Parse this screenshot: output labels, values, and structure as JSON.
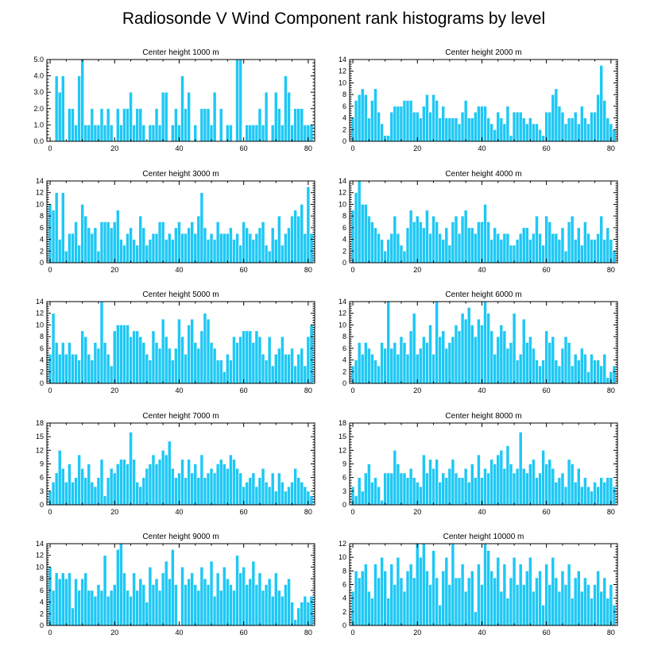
{
  "title": "Radiosonde V Wind Component rank histograms by level",
  "colors": {
    "bar": "#1ec8f5",
    "axis": "#000000"
  },
  "chart_data": [
    {
      "type": "bar",
      "title": "Center height 1000 m",
      "ylim": [
        0,
        5
      ],
      "yticks": [
        "0.0",
        "1.0",
        "2.0",
        "3.0",
        "4.0",
        "5.0"
      ],
      "ytick_values": [
        0,
        1,
        2,
        3,
        4,
        5
      ],
      "xlim": [
        -1,
        82
      ],
      "xticks": [
        0,
        20,
        40,
        60,
        80
      ],
      "xtick_labels": [
        "0",
        "20",
        "40",
        "60",
        "80"
      ],
      "categories_start": 0,
      "values": [
        0,
        0,
        4,
        3,
        4,
        0,
        2,
        2,
        1,
        4,
        5,
        1,
        1,
        2,
        1,
        1,
        2,
        1,
        2,
        1,
        0,
        2,
        1,
        2,
        2,
        3,
        1,
        2,
        2,
        1,
        0,
        1,
        1,
        2,
        1,
        3,
        3,
        0,
        1,
        2,
        1,
        4,
        2,
        3,
        0,
        1,
        0,
        2,
        2,
        2,
        1,
        3,
        0,
        2,
        0,
        1,
        1,
        0,
        5,
        5,
        0,
        1,
        1,
        1,
        1,
        2,
        1,
        3,
        0,
        1,
        3,
        2,
        1,
        4,
        3,
        1,
        2,
        2,
        2,
        1,
        1,
        1
      ]
    },
    {
      "type": "bar",
      "title": "Center height 2000 m",
      "ylim": [
        0,
        14
      ],
      "yticks": [
        "0",
        "2",
        "4",
        "6",
        "8",
        "10",
        "12",
        "14"
      ],
      "ytick_values": [
        0,
        2,
        4,
        6,
        8,
        10,
        12,
        14
      ],
      "xlim": [
        -1,
        82
      ],
      "xticks": [
        0,
        20,
        40,
        60,
        80
      ],
      "xtick_labels": [
        "0",
        "20",
        "40",
        "60",
        "80"
      ],
      "categories_start": 0,
      "values": [
        4,
        7,
        8,
        9,
        8,
        4,
        7,
        9,
        5,
        3,
        1,
        1,
        5,
        6,
        6,
        6,
        7,
        7,
        7,
        5,
        5,
        4,
        6,
        8,
        5,
        8,
        7,
        4,
        6,
        4,
        4,
        4,
        4,
        3,
        5,
        7,
        4,
        4,
        5,
        6,
        6,
        6,
        4,
        3,
        2,
        5,
        4,
        3,
        6,
        1,
        5,
        5,
        5,
        4,
        3,
        4,
        3,
        3,
        2,
        1,
        5,
        5,
        8,
        9,
        6,
        5,
        3,
        4,
        4,
        5,
        3,
        6,
        4,
        3,
        5,
        5,
        8,
        13,
        7,
        4,
        3,
        2
      ]
    },
    {
      "type": "bar",
      "title": "Center height 3000 m",
      "ylim": [
        0,
        14
      ],
      "yticks": [
        "0",
        "2",
        "4",
        "6",
        "8",
        "10",
        "12",
        "14"
      ],
      "ytick_values": [
        0,
        2,
        4,
        6,
        8,
        10,
        12,
        14
      ],
      "xlim": [
        -1,
        82
      ],
      "xticks": [
        0,
        20,
        40,
        60,
        80
      ],
      "xtick_labels": [
        "0",
        "20",
        "40",
        "60",
        "80"
      ],
      "categories_start": 0,
      "values": [
        10,
        9,
        12,
        4,
        12,
        2,
        5,
        5,
        7,
        3,
        10,
        8,
        6,
        5,
        6,
        2,
        7,
        7,
        7,
        6,
        7,
        9,
        4,
        3,
        5,
        6,
        4,
        3,
        8,
        6,
        3,
        4,
        5,
        5,
        7,
        7,
        4,
        5,
        4,
        6,
        7,
        5,
        5,
        6,
        7,
        5,
        8,
        12,
        6,
        4,
        5,
        4,
        7,
        5,
        5,
        5,
        6,
        4,
        5,
        3,
        7,
        6,
        5,
        4,
        5,
        6,
        7,
        3,
        2,
        6,
        4,
        8,
        3,
        5,
        6,
        8,
        9,
        8,
        10,
        5,
        13,
        5
      ]
    },
    {
      "type": "bar",
      "title": "Center height 4000 m",
      "ylim": [
        0,
        14
      ],
      "yticks": [
        "0",
        "2",
        "4",
        "6",
        "8",
        "10",
        "12",
        "14"
      ],
      "ytick_values": [
        0,
        2,
        4,
        6,
        8,
        10,
        12,
        14
      ],
      "xlim": [
        -1,
        82
      ],
      "xticks": [
        0,
        20,
        40,
        60,
        80
      ],
      "xtick_labels": [
        "0",
        "20",
        "40",
        "60",
        "80"
      ],
      "categories_start": 0,
      "values": [
        9,
        12,
        14,
        10,
        10,
        8,
        7,
        6,
        5,
        4,
        2,
        4,
        5,
        8,
        5,
        3,
        2,
        6,
        9,
        7,
        8,
        7,
        6,
        9,
        5,
        8,
        7,
        5,
        4,
        6,
        3,
        7,
        8,
        5,
        8,
        9,
        6,
        6,
        5,
        7,
        7,
        10,
        7,
        4,
        6,
        5,
        4,
        5,
        5,
        3,
        3,
        4,
        5,
        6,
        6,
        4,
        5,
        8,
        5,
        3,
        8,
        7,
        5,
        5,
        4,
        6,
        2,
        7,
        8,
        4,
        6,
        3,
        7,
        5,
        4,
        4,
        5,
        8,
        4,
        6,
        4,
        2
      ]
    },
    {
      "type": "bar",
      "title": "Center height 5000 m",
      "ylim": [
        0,
        14
      ],
      "yticks": [
        "0",
        "2",
        "4",
        "6",
        "8",
        "10",
        "12",
        "14"
      ],
      "ytick_values": [
        0,
        2,
        4,
        6,
        8,
        10,
        12,
        14
      ],
      "xlim": [
        -1,
        82
      ],
      "xticks": [
        0,
        20,
        40,
        60,
        80
      ],
      "xtick_labels": [
        "0",
        "20",
        "40",
        "60",
        "80"
      ],
      "categories_start": 0,
      "values": [
        5,
        12,
        7,
        5,
        7,
        5,
        7,
        5,
        5,
        4,
        9,
        8,
        5,
        4,
        7,
        6,
        14,
        7,
        5,
        3,
        9,
        10,
        10,
        10,
        10,
        8,
        9,
        9,
        8,
        7,
        5,
        4,
        9,
        7,
        6,
        11,
        8,
        6,
        4,
        6,
        11,
        8,
        5,
        10,
        11,
        7,
        6,
        9,
        12,
        11,
        7,
        6,
        4,
        4,
        2,
        5,
        4,
        8,
        7,
        8,
        9,
        9,
        9,
        7,
        9,
        8,
        5,
        4,
        8,
        3,
        5,
        6,
        8,
        5,
        5,
        6,
        3,
        5,
        6,
        3,
        8,
        10
      ]
    },
    {
      "type": "bar",
      "title": "Center height 6000 m",
      "ylim": [
        0,
        14
      ],
      "yticks": [
        "0",
        "2",
        "4",
        "6",
        "8",
        "10",
        "12",
        "14"
      ],
      "ytick_values": [
        0,
        2,
        4,
        6,
        8,
        10,
        12,
        14
      ],
      "xlim": [
        -1,
        82
      ],
      "xticks": [
        0,
        20,
        40,
        60,
        80
      ],
      "xtick_labels": [
        "0",
        "20",
        "40",
        "60",
        "80"
      ],
      "categories_start": 0,
      "values": [
        3,
        4,
        7,
        5,
        7,
        6,
        5,
        4,
        3,
        7,
        6,
        14,
        6,
        7,
        5,
        8,
        7,
        5,
        9,
        12,
        5,
        6,
        8,
        7,
        10,
        5,
        14,
        8,
        9,
        6,
        7,
        8,
        10,
        9,
        12,
        11,
        13,
        10,
        8,
        11,
        10,
        14,
        12,
        9,
        5,
        8,
        10,
        9,
        6,
        7,
        12,
        4,
        5,
        11,
        7,
        8,
        6,
        4,
        3,
        4,
        9,
        7,
        8,
        4,
        3,
        6,
        8,
        7,
        3,
        5,
        4,
        6,
        5,
        2,
        5,
        4,
        4,
        3,
        5,
        1,
        2,
        3
      ]
    },
    {
      "type": "bar",
      "title": "Center height 7000 m",
      "ylim": [
        0,
        18
      ],
      "yticks": [
        "0",
        "3",
        "6",
        "9",
        "12",
        "15",
        "18"
      ],
      "ytick_values": [
        0,
        3,
        6,
        9,
        12,
        15,
        18
      ],
      "xlim": [
        -1,
        82
      ],
      "xticks": [
        0,
        20,
        40,
        60,
        80
      ],
      "xtick_labels": [
        "0",
        "20",
        "40",
        "60",
        "80"
      ],
      "categories_start": 0,
      "values": [
        3,
        5,
        7,
        12,
        8,
        5,
        9,
        5,
        6,
        11,
        8,
        6,
        9,
        5,
        4,
        6,
        10,
        2,
        6,
        8,
        7,
        9,
        10,
        10,
        9,
        16,
        10,
        5,
        4,
        6,
        8,
        9,
        11,
        9,
        10,
        12,
        11,
        14,
        8,
        6,
        7,
        10,
        6,
        10,
        7,
        9,
        6,
        11,
        6,
        7,
        8,
        7,
        9,
        10,
        9,
        8,
        11,
        10,
        8,
        7,
        4,
        5,
        6,
        7,
        4,
        6,
        8,
        5,
        4,
        7,
        3,
        7,
        5,
        3,
        4,
        5,
        8,
        6,
        5,
        4,
        3,
        2
      ]
    },
    {
      "type": "bar",
      "title": "Center height 8000 m",
      "ylim": [
        0,
        18
      ],
      "yticks": [
        "0",
        "3",
        "6",
        "9",
        "12",
        "15",
        "18"
      ],
      "ytick_values": [
        0,
        3,
        6,
        9,
        12,
        15,
        18
      ],
      "xlim": [
        -1,
        82
      ],
      "xticks": [
        0,
        20,
        40,
        60,
        80
      ],
      "xtick_labels": [
        "0",
        "20",
        "40",
        "60",
        "80"
      ],
      "categories_start": 0,
      "values": [
        4,
        2,
        6,
        3,
        7,
        9,
        5,
        6,
        4,
        1,
        7,
        7,
        7,
        12,
        9,
        7,
        7,
        6,
        8,
        6,
        5,
        4,
        11,
        7,
        10,
        8,
        10,
        5,
        7,
        6,
        8,
        10,
        7,
        6,
        6,
        8,
        5,
        9,
        6,
        11,
        6,
        8,
        7,
        10,
        9,
        11,
        12,
        8,
        13,
        9,
        7,
        8,
        16,
        8,
        7,
        9,
        10,
        6,
        7,
        12,
        9,
        10,
        8,
        5,
        6,
        7,
        4,
        10,
        9,
        5,
        8,
        4,
        6,
        4,
        3,
        5,
        4,
        6,
        5,
        6,
        6,
        4
      ]
    },
    {
      "type": "bar",
      "title": "Center height 9000 m",
      "ylim": [
        0,
        14
      ],
      "yticks": [
        "0",
        "2",
        "4",
        "6",
        "8",
        "10",
        "12",
        "14"
      ],
      "ytick_values": [
        0,
        2,
        4,
        6,
        8,
        10,
        12,
        14
      ],
      "xlim": [
        -1,
        82
      ],
      "xticks": [
        0,
        20,
        40,
        60,
        80
      ],
      "xtick_labels": [
        "0",
        "20",
        "40",
        "60",
        "80"
      ],
      "categories_start": 0,
      "values": [
        10,
        6,
        9,
        8,
        9,
        8,
        9,
        3,
        8,
        6,
        8,
        9,
        6,
        6,
        5,
        7,
        6,
        12,
        5,
        6,
        7,
        13,
        14,
        9,
        6,
        5,
        9,
        6,
        8,
        7,
        4,
        10,
        7,
        8,
        6,
        9,
        11,
        8,
        13,
        7,
        0,
        10,
        7,
        8,
        9,
        7,
        6,
        10,
        8,
        7,
        11,
        5,
        9,
        6,
        10,
        8,
        7,
        6,
        12,
        9,
        10,
        7,
        8,
        11,
        7,
        9,
        6,
        7,
        8,
        5,
        9,
        6,
        5,
        7,
        8,
        4,
        1,
        3,
        4,
        5,
        4,
        5
      ]
    },
    {
      "type": "bar",
      "title": "Center height 10000 m",
      "ylim": [
        0,
        12
      ],
      "yticks": [
        "0",
        "2",
        "4",
        "6",
        "8",
        "10",
        "12"
      ],
      "ytick_values": [
        0,
        2,
        4,
        6,
        8,
        10,
        12
      ],
      "xlim": [
        -1,
        82
      ],
      "xticks": [
        0,
        20,
        40,
        60,
        80
      ],
      "xtick_labels": [
        "0",
        "20",
        "40",
        "60",
        "80"
      ],
      "categories_start": 0,
      "values": [
        5,
        8,
        7,
        8,
        9,
        5,
        4,
        9,
        7,
        10,
        8,
        4,
        9,
        6,
        10,
        7,
        5,
        8,
        9,
        7,
        12,
        10,
        12,
        8,
        6,
        11,
        7,
        3,
        8,
        10,
        6,
        12,
        7,
        7,
        9,
        5,
        7,
        8,
        2,
        9,
        6,
        12,
        11,
        8,
        7,
        10,
        5,
        9,
        4,
        7,
        10,
        6,
        9,
        6,
        8,
        10,
        5,
        7,
        8,
        3,
        9,
        6,
        10,
        7,
        5,
        8,
        6,
        9,
        4,
        7,
        8,
        5,
        7,
        6,
        4,
        6,
        8,
        5,
        7,
        4,
        6,
        3
      ]
    }
  ]
}
